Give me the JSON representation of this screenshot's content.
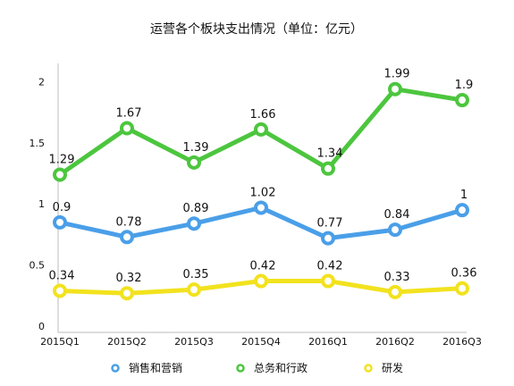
{
  "chart_data": {
    "type": "line",
    "title": "运营各个板块支出情况（单位：亿元）",
    "xlabel": "",
    "ylabel": "",
    "categories": [
      "2015Q1",
      "2015Q2",
      "2015Q3",
      "2015Q4",
      "2016Q1",
      "2016Q2",
      "2016Q3"
    ],
    "yticks": [
      "0",
      "0.5",
      "1",
      "1.5",
      "2"
    ],
    "ylim": [
      0,
      2.2
    ],
    "grid": false,
    "legend_position": "bottom",
    "series": [
      {
        "name": "销售和营销",
        "color": "#4a9fe8",
        "values": [
          0.9,
          0.78,
          0.89,
          1.02,
          0.77,
          0.84,
          1
        ],
        "labels": [
          "0.9",
          "0.78",
          "0.89",
          "1.02",
          "0.77",
          "0.84",
          "1"
        ]
      },
      {
        "name": "总务和行政",
        "color": "#4cc63e",
        "values": [
          1.29,
          1.67,
          1.39,
          1.66,
          1.34,
          1.99,
          1.9
        ],
        "labels": [
          "1.29",
          "1.67",
          "1.39",
          "1.66",
          "1.34",
          "1.99",
          "1.9"
        ]
      },
      {
        "name": "研发",
        "color": "#f2e21e",
        "values": [
          0.34,
          0.32,
          0.35,
          0.42,
          0.42,
          0.33,
          0.36
        ],
        "labels": [
          "0.34",
          "0.32",
          "0.35",
          "0.42",
          "0.42",
          "0.33",
          "0.36"
        ]
      }
    ]
  }
}
